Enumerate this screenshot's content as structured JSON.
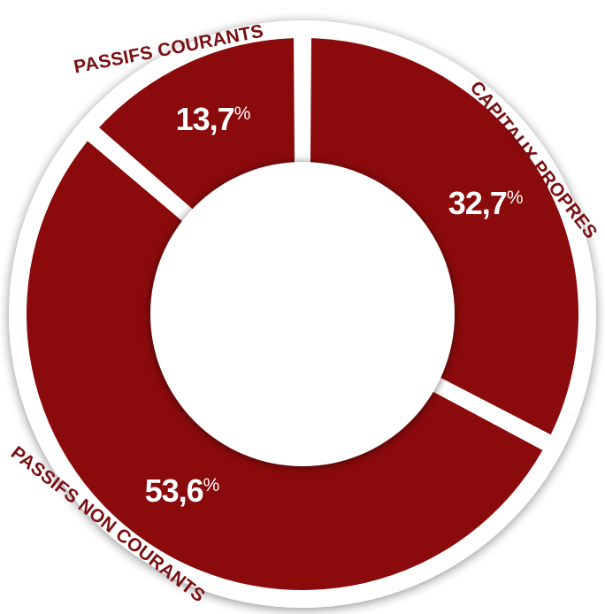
{
  "chart_data": {
    "type": "pie",
    "variant": "donut",
    "categories": [
      "CAPITAUX PROPRES",
      "PASSIFS NON COURANTS",
      "PASSIFS COURANTS"
    ],
    "values": [
      32.7,
      53.6,
      13.7
    ],
    "data_labels": [
      {
        "number": "32,7",
        "unit": "%"
      },
      {
        "number": "53,6",
        "unit": "%"
      },
      {
        "number": "13,7",
        "unit": "%"
      }
    ],
    "legend": "none",
    "colors": {
      "slice": "#8b0a0c",
      "label_outer": "#7a0f12",
      "label_inner": "#ffffff",
      "ring_background": "#ffffff"
    }
  }
}
